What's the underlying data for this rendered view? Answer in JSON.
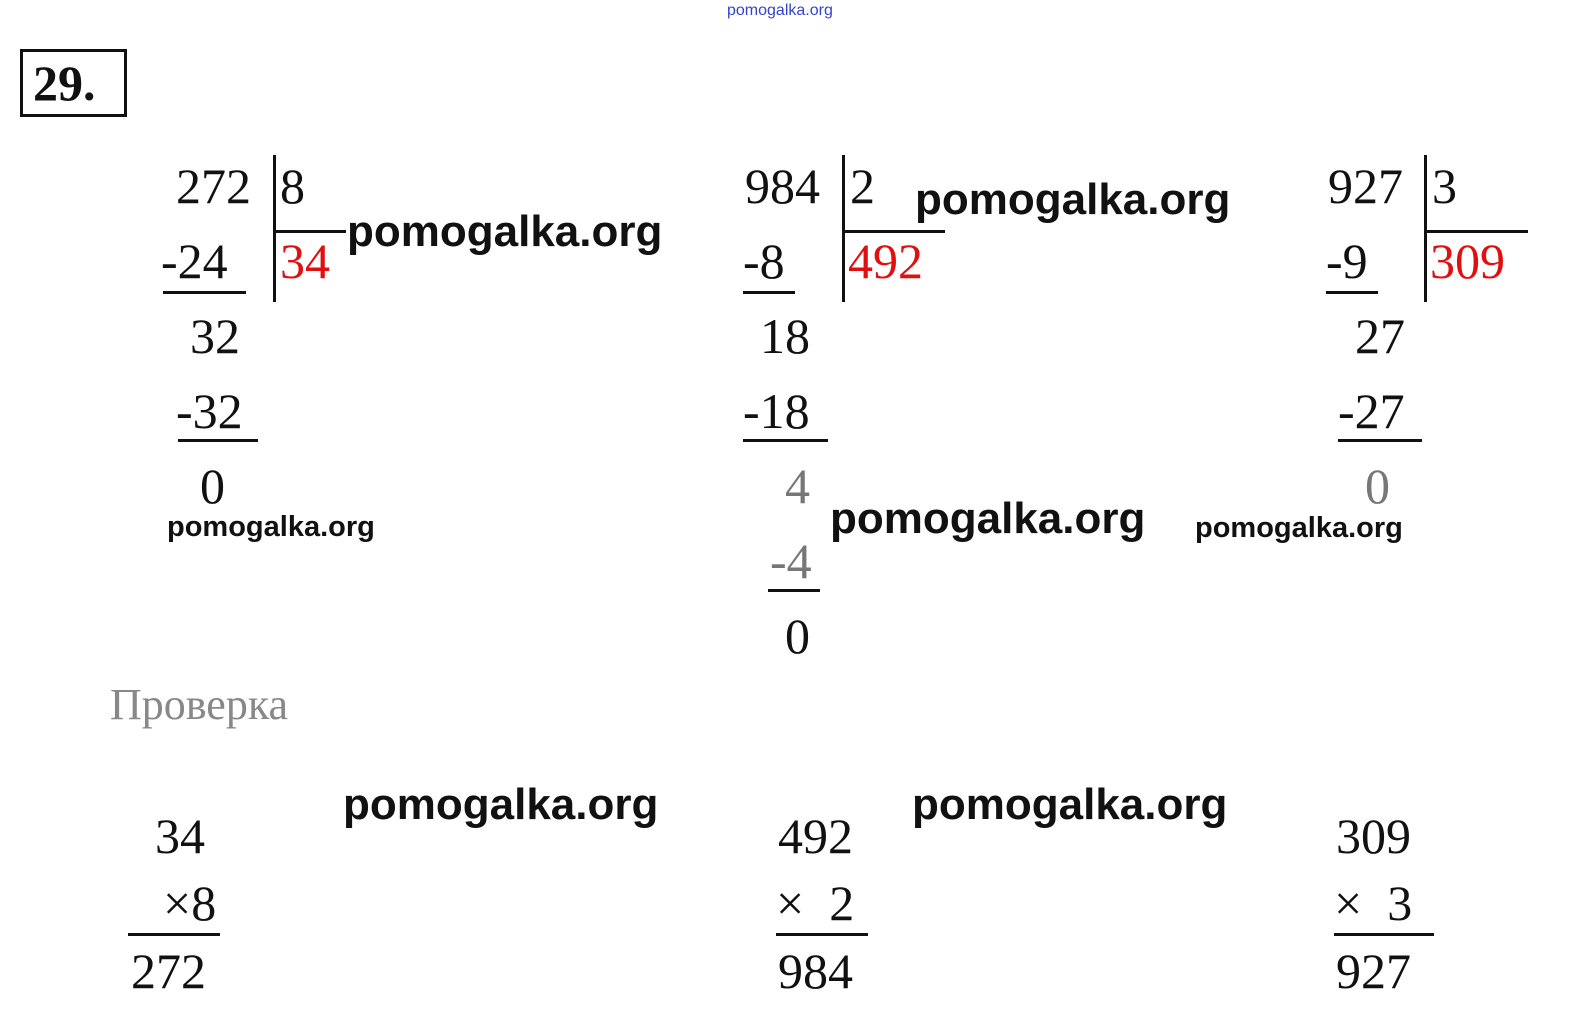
{
  "site_watermark": "pomogalka.org",
  "exercise_number": "29.",
  "check_label": "Проверка",
  "divisions": [
    {
      "dividend": "272",
      "divisor": "8",
      "quotient": "34",
      "steps": [
        "-24",
        "32",
        "-32",
        "0"
      ]
    },
    {
      "dividend": "984",
      "divisor": "2",
      "quotient": "492",
      "steps": [
        "-8",
        "18",
        "-18",
        "4",
        "-4",
        "0"
      ]
    },
    {
      "dividend": "927",
      "divisor": "3",
      "quotient": "309",
      "steps": [
        "-9",
        "27",
        "-27",
        "0"
      ]
    }
  ],
  "checks": [
    {
      "a": "34",
      "b": "×8",
      "result": "272"
    },
    {
      "a": "492",
      "b": "×  2",
      "result": "984"
    },
    {
      "a": "309",
      "b": "×  3",
      "result": "927"
    }
  ],
  "colors": {
    "quotient": "#e01010",
    "check_label": "#888888",
    "top_watermark": "#3344cc"
  }
}
